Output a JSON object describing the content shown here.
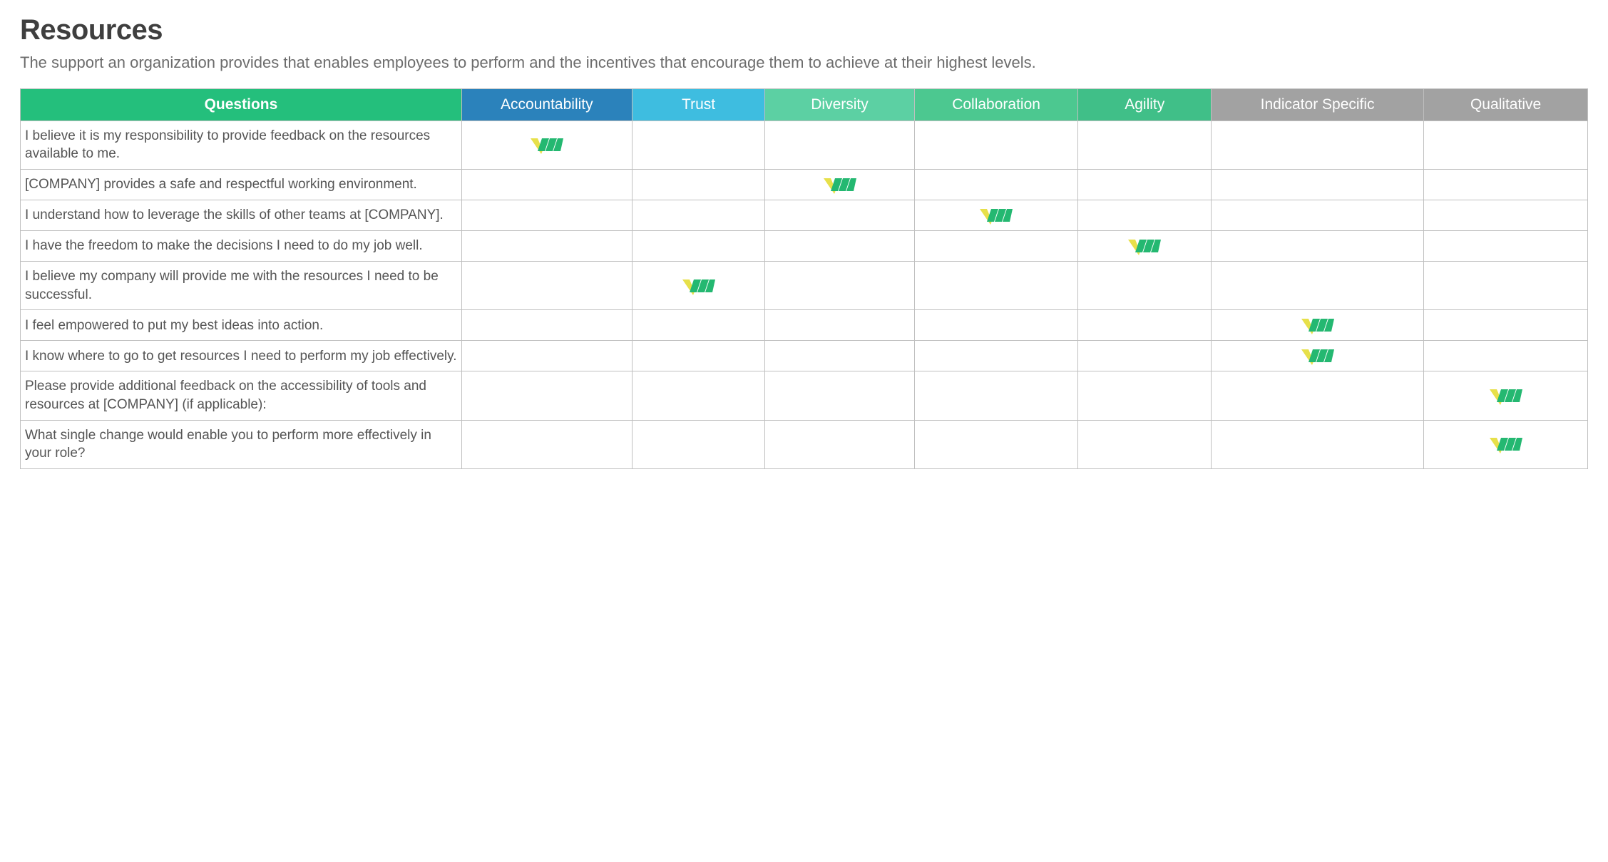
{
  "page": {
    "title": "Resources",
    "subtitle": "The support an organization provides that enables employees to perform and the incentives that encourage them to achieve at their highest levels."
  },
  "table": {
    "columns": [
      {
        "key": "questions",
        "label": "Questions",
        "width": "27.2%",
        "bg": "#24bf7c",
        "isQuestion": true
      },
      {
        "key": "accountability",
        "label": "Accountability",
        "width": "10.5%",
        "bg": "#2b82bb"
      },
      {
        "key": "trust",
        "label": "Trust",
        "width": "8.2%",
        "bg": "#3ebde0"
      },
      {
        "key": "diversity",
        "label": "Diversity",
        "width": "9.2%",
        "bg": "#5cd0a3"
      },
      {
        "key": "collaboration",
        "label": "Collaboration",
        "width": "10.1%",
        "bg": "#4cc890"
      },
      {
        "key": "agility",
        "label": "Agility",
        "width": "8.2%",
        "bg": "#40bf88"
      },
      {
        "key": "indicator",
        "label": "Indicator Specific",
        "width": "13.1%",
        "bg": "#a2a2a2"
      },
      {
        "key": "qualitative",
        "label": "Qualitative",
        "width": "10.1%",
        "bg": "#a2a2a2"
      }
    ],
    "rows": [
      {
        "question": "I believe it is my responsibility to provide feedback on the resources available to me.",
        "marks": [
          "accountability"
        ]
      },
      {
        "question": "[COMPANY] provides a safe and respectful working environment.",
        "marks": [
          "diversity"
        ]
      },
      {
        "question": "I understand how to leverage the skills of other teams at [COMPANY].",
        "marks": [
          "collaboration"
        ]
      },
      {
        "question": "I have the freedom to make the decisions I need to do my job well.",
        "marks": [
          "agility"
        ]
      },
      {
        "question": "I believe my company will provide me with the resources I need to be successful.",
        "marks": [
          "trust"
        ]
      },
      {
        "question": "I feel empowered to put my best ideas into action.",
        "marks": [
          "indicator"
        ]
      },
      {
        "question": "I know where to go to get resources I need to perform my job effectively.",
        "marks": [
          "indicator"
        ]
      },
      {
        "question": "Please provide additional feedback on the accessibility of tools and resources at [COMPANY] (if applicable):",
        "marks": [
          "qualitative"
        ]
      },
      {
        "question": "What single change would enable you to perform more effectively in your role?",
        "marks": [
          "qualitative"
        ]
      }
    ]
  },
  "mark_icon": {
    "colors": {
      "chevron": "#e7e04a",
      "bars": "#24b871"
    },
    "width": 46,
    "height": 26
  }
}
